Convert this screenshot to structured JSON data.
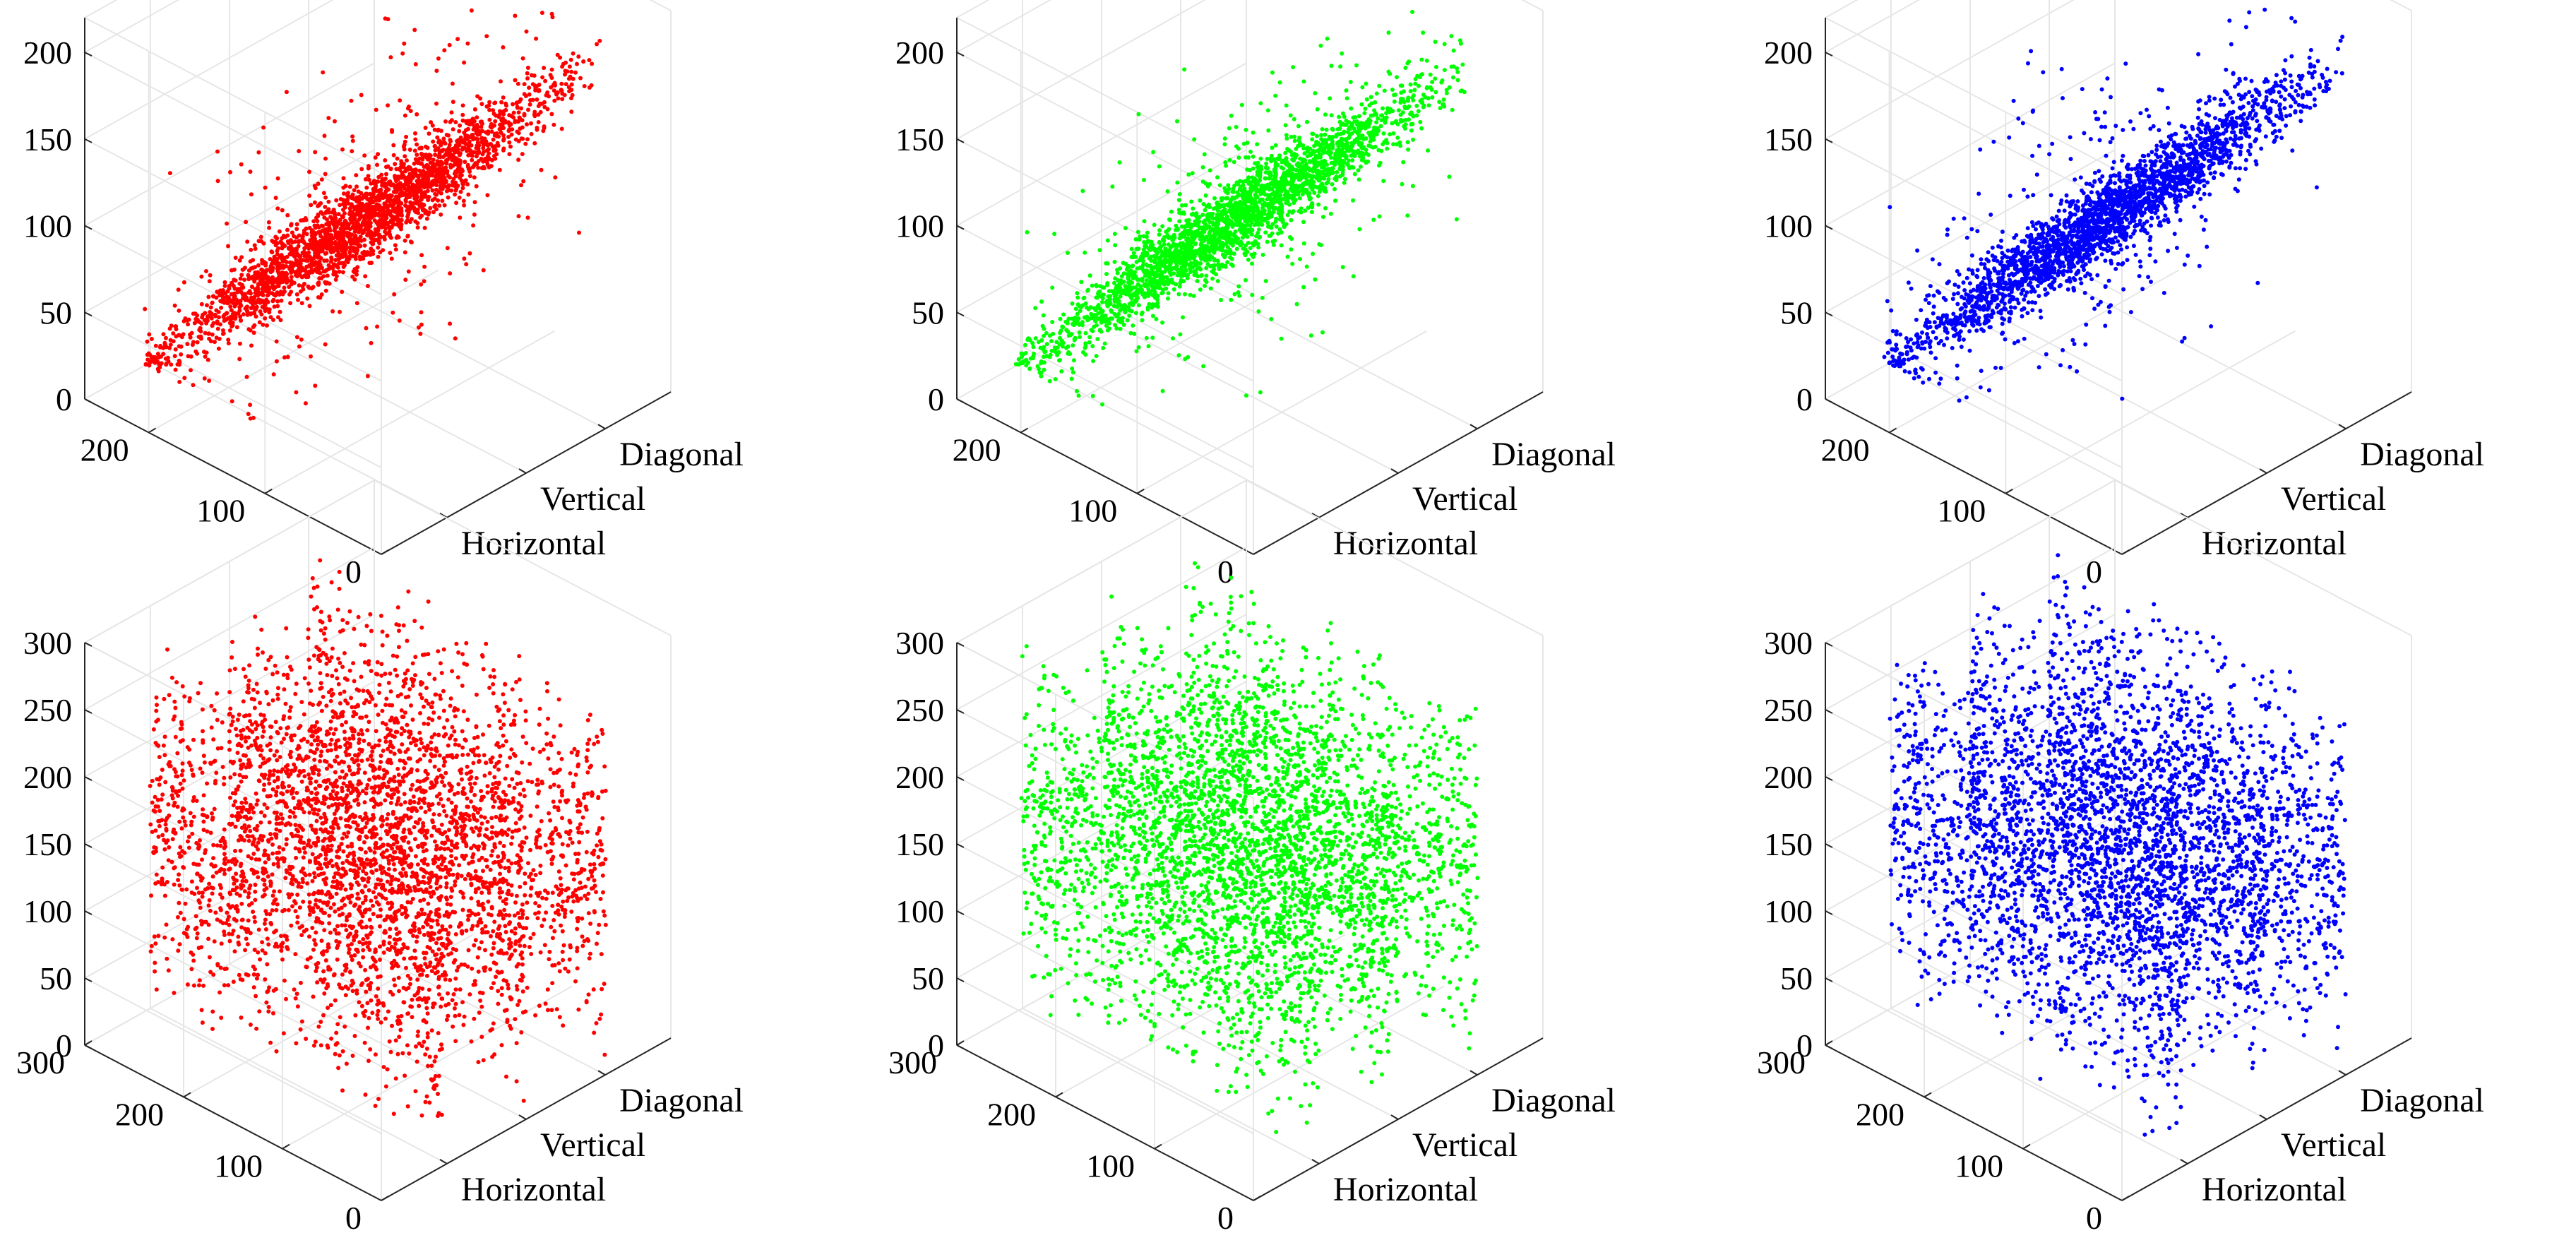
{
  "figure": {
    "rows": 2,
    "cols": 3
  },
  "chart_data": [
    {
      "type": "scatter",
      "color": "#ff0000",
      "categories": [
        "Horizontal",
        "Vertical",
        "Diagonal"
      ],
      "y_ticks": [
        "0",
        "100",
        "200"
      ],
      "z_ticks": [
        "0",
        "50",
        "100",
        "150",
        "200"
      ],
      "yrange": [
        0,
        255
      ],
      "zrange": [
        0,
        220
      ],
      "distribution": "correlated",
      "grid": true,
      "series": [
        {
          "category": "Horizontal"
        },
        {
          "category": "Vertical"
        },
        {
          "category": "Diagonal"
        }
      ]
    },
    {
      "type": "scatter",
      "color": "#00ff00",
      "categories": [
        "Horizontal",
        "Vertical",
        "Diagonal"
      ],
      "y_ticks": [
        "0",
        "100",
        "200"
      ],
      "z_ticks": [
        "0",
        "50",
        "100",
        "150",
        "200"
      ],
      "yrange": [
        0,
        255
      ],
      "zrange": [
        0,
        220
      ],
      "distribution": "correlated",
      "grid": true,
      "series": [
        {
          "category": "Horizontal"
        },
        {
          "category": "Vertical"
        },
        {
          "category": "Diagonal"
        }
      ]
    },
    {
      "type": "scatter",
      "color": "#0000ff",
      "categories": [
        "Horizontal",
        "Vertical",
        "Diagonal"
      ],
      "y_ticks": [
        "0",
        "100",
        "200"
      ],
      "z_ticks": [
        "0",
        "50",
        "100",
        "150",
        "200"
      ],
      "yrange": [
        0,
        255
      ],
      "zrange": [
        0,
        220
      ],
      "distribution": "correlated",
      "grid": true,
      "series": [
        {
          "category": "Horizontal"
        },
        {
          "category": "Vertical"
        },
        {
          "category": "Diagonal"
        }
      ]
    },
    {
      "type": "scatter",
      "color": "#ff0000",
      "categories": [
        "Horizontal",
        "Vertical",
        "Diagonal"
      ],
      "y_ticks": [
        "0",
        "100",
        "200",
        "300"
      ],
      "z_ticks": [
        "0",
        "50",
        "100",
        "150",
        "200",
        "250",
        "300"
      ],
      "yrange": [
        0,
        300
      ],
      "zrange": [
        0,
        300
      ],
      "distribution": "uniform",
      "grid": true,
      "series": [
        {
          "category": "Horizontal"
        },
        {
          "category": "Vertical"
        },
        {
          "category": "Diagonal"
        }
      ]
    },
    {
      "type": "scatter",
      "color": "#00ff00",
      "categories": [
        "Horizontal",
        "Vertical",
        "Diagonal"
      ],
      "y_ticks": [
        "0",
        "100",
        "200",
        "300"
      ],
      "z_ticks": [
        "0",
        "50",
        "100",
        "150",
        "200",
        "250",
        "300"
      ],
      "yrange": [
        0,
        300
      ],
      "zrange": [
        0,
        300
      ],
      "distribution": "uniform",
      "grid": true,
      "series": [
        {
          "category": "Horizontal"
        },
        {
          "category": "Vertical"
        },
        {
          "category": "Diagonal"
        }
      ]
    },
    {
      "type": "scatter",
      "color": "#0000ff",
      "categories": [
        "Horizontal",
        "Vertical",
        "Diagonal"
      ],
      "y_ticks": [
        "0",
        "100",
        "200",
        "300"
      ],
      "z_ticks": [
        "0",
        "50",
        "100",
        "150",
        "200",
        "250",
        "300"
      ],
      "yrange": [
        0,
        300
      ],
      "zrange": [
        0,
        300
      ],
      "distribution": "uniform",
      "grid": true,
      "series": [
        {
          "category": "Horizontal"
        },
        {
          "category": "Vertical"
        },
        {
          "category": "Diagonal"
        }
      ]
    }
  ]
}
